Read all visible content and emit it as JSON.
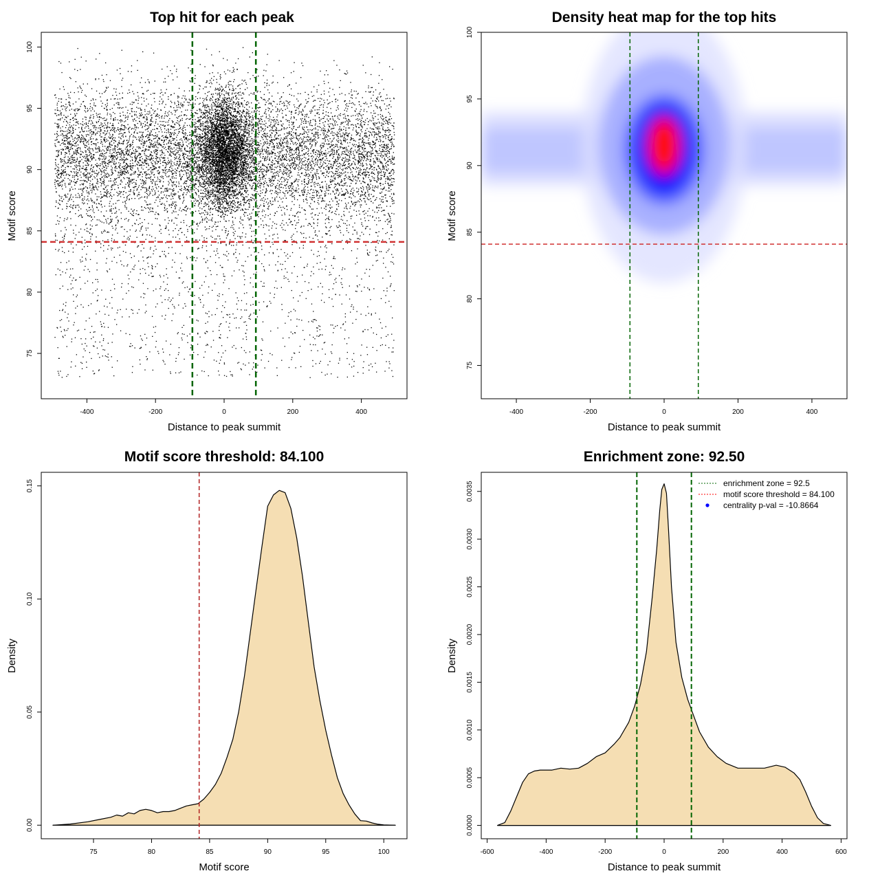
{
  "chart_data": [
    {
      "id": "scatter",
      "type": "scatter",
      "title": "Top hit for each peak",
      "xlabel": "Distance to peak summit",
      "ylabel": "Motif score",
      "xlim": [
        -533,
        533
      ],
      "ylim": [
        71.3,
        101.2
      ],
      "xticks": [
        -400,
        -200,
        0,
        200,
        400
      ],
      "yticks": [
        75,
        80,
        85,
        90,
        95,
        100
      ],
      "vlines": [
        -92.5,
        92.5
      ],
      "hline": 84.1,
      "point_count_estimate": 14000,
      "distribution": {
        "background_x_range": [
          -495,
          495
        ],
        "central_cluster": {
          "x_center": 0,
          "x_sd": 28,
          "y_center": 91.5,
          "y_sd": 2.3
        },
        "background": {
          "y_center": 91,
          "y_sd": 2.8
        }
      }
    },
    {
      "id": "heatmap",
      "type": "heatmap",
      "title": "Density heat map for the top hits",
      "xlabel": "Distance to peak summit",
      "ylabel": "Motif score",
      "xlim": [
        -495,
        495
      ],
      "ylim": [
        72.5,
        100
      ],
      "xticks": [
        -400,
        -200,
        0,
        200,
        400
      ],
      "yticks": [
        75,
        80,
        85,
        90,
        95,
        100
      ],
      "vlines": [
        -92.5,
        92.5
      ],
      "hline": 84.1,
      "colorscale": [
        "#ffffff",
        "#0000ff",
        "#ff0000"
      ],
      "peak": {
        "x": 0,
        "y": 91.5
      }
    },
    {
      "id": "score_density",
      "type": "area",
      "title": "Motif score threshold: 84.100",
      "xlabel": "Motif score",
      "ylabel": "Density",
      "xlim": [
        70.5,
        102
      ],
      "ylim": [
        -0.006,
        0.156
      ],
      "xticks": [
        75,
        80,
        85,
        90,
        95,
        100
      ],
      "yticks": [
        0.0,
        0.05,
        0.1,
        0.15
      ],
      "ytick_labels": [
        "0.00",
        "0.05",
        "0.10",
        "0.15"
      ],
      "vline": 84.1,
      "fill": "#f5deb3",
      "x": [
        71.5,
        73,
        74.5,
        75.5,
        76.5,
        77,
        77.5,
        78,
        78.5,
        79,
        79.5,
        80,
        80.5,
        81,
        81.5,
        82,
        82.5,
        83,
        83.5,
        84,
        84.5,
        85,
        85.5,
        86,
        86.5,
        87,
        87.5,
        88,
        88.5,
        89,
        89.5,
        90,
        90.5,
        91,
        91.5,
        92,
        92.5,
        93,
        93.5,
        94,
        94.5,
        95,
        95.5,
        96,
        96.5,
        97,
        97.5,
        98,
        98.5,
        99,
        99.5,
        100,
        101
      ],
      "y": [
        0.0,
        0.0005,
        0.0015,
        0.0025,
        0.0035,
        0.0045,
        0.004,
        0.0055,
        0.005,
        0.0065,
        0.007,
        0.0065,
        0.0055,
        0.006,
        0.006,
        0.0065,
        0.0075,
        0.0085,
        0.009,
        0.0095,
        0.0115,
        0.0145,
        0.018,
        0.023,
        0.03,
        0.038,
        0.05,
        0.066,
        0.085,
        0.104,
        0.123,
        0.141,
        0.146,
        0.148,
        0.147,
        0.14,
        0.127,
        0.11,
        0.09,
        0.07,
        0.055,
        0.042,
        0.031,
        0.021,
        0.014,
        0.009,
        0.005,
        0.002,
        0.0018,
        0.001,
        0.0004,
        0.0001,
        0.0
      ]
    },
    {
      "id": "position_density",
      "type": "area",
      "title": "Enrichment zone: 92.50",
      "xlabel": "Distance to peak summit",
      "ylabel": "Density",
      "xlim": [
        -620,
        620
      ],
      "ylim": [
        -0.00014,
        0.0037
      ],
      "xticks": [
        -600,
        -400,
        -200,
        0,
        200,
        400,
        600
      ],
      "yticks": [
        0.0,
        0.0005,
        0.001,
        0.0015,
        0.002,
        0.0025,
        0.003,
        0.0035
      ],
      "ytick_labels": [
        "0.0000",
        "0.0005",
        "0.0010",
        "0.0015",
        "0.0020",
        "0.0025",
        "0.0030",
        "0.0035"
      ],
      "vlines": [
        -92.5,
        92.5
      ],
      "fill": "#f5deb3",
      "x": [
        -565,
        -540,
        -520,
        -500,
        -480,
        -460,
        -440,
        -420,
        -380,
        -350,
        -320,
        -290,
        -260,
        -230,
        -200,
        -170,
        -150,
        -120,
        -100,
        -80,
        -60,
        -40,
        -25,
        -15,
        -8,
        0,
        8,
        15,
        25,
        40,
        60,
        80,
        100,
        120,
        150,
        180,
        210,
        250,
        300,
        340,
        380,
        410,
        440,
        460,
        480,
        500,
        520,
        540,
        565
      ],
      "y": [
        0.0,
        3e-05,
        0.00015,
        0.0003,
        0.00045,
        0.00054,
        0.00057,
        0.00058,
        0.00058,
        0.0006,
        0.00059,
        0.0006,
        0.00065,
        0.00072,
        0.00076,
        0.00085,
        0.00092,
        0.00108,
        0.00125,
        0.00148,
        0.00182,
        0.0024,
        0.0029,
        0.0033,
        0.00352,
        0.00358,
        0.00348,
        0.0031,
        0.0025,
        0.00192,
        0.00155,
        0.00132,
        0.00115,
        0.00098,
        0.00082,
        0.00072,
        0.00065,
        0.0006,
        0.0006,
        0.0006,
        0.00063,
        0.00061,
        0.00055,
        0.00048,
        0.00035,
        0.0002,
        8e-05,
        2e-05,
        0.0
      ],
      "legend": [
        {
          "label": "enrichment zone = 92.5",
          "color": "#006400",
          "style": "dotted"
        },
        {
          "label": "motif score threshold = 84.100",
          "color": "#ff0000",
          "style": "dotted"
        },
        {
          "label": "centrality p-val = -10.8664",
          "color": "#0000ff",
          "style": "point"
        }
      ]
    }
  ]
}
